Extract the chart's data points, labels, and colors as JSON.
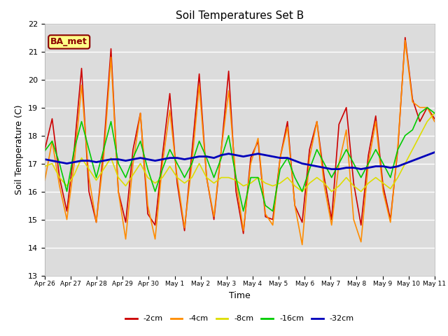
{
  "title": "Soil Temperatures Set B",
  "xlabel": "Time",
  "ylabel": "Soil Temperature (C)",
  "ylim": [
    13.0,
    22.0
  ],
  "yticks": [
    13.0,
    14.0,
    15.0,
    16.0,
    17.0,
    18.0,
    19.0,
    20.0,
    21.0,
    22.0
  ],
  "x_labels": [
    "Apr 26",
    "Apr 27",
    "Apr 28",
    "Apr 29",
    "Apr 30",
    "May 1",
    "May 2",
    "May 3",
    "May 4",
    "May 5",
    "May 6",
    "May 7",
    "May 8",
    "May 9",
    "May 10",
    "May 11"
  ],
  "annotation": "BA_met",
  "series_order": [
    "-2cm",
    "-4cm",
    "-8cm",
    "-16cm",
    "-32cm"
  ],
  "series": {
    "-2cm": {
      "color": "#CC0000",
      "linewidth": 1.2,
      "values": [
        17.5,
        18.6,
        16.5,
        15.3,
        17.5,
        20.4,
        16.0,
        14.9,
        17.5,
        21.1,
        16.0,
        14.9,
        17.5,
        18.8,
        15.2,
        14.8,
        17.3,
        19.5,
        16.3,
        14.6,
        17.4,
        20.2,
        16.5,
        15.0,
        17.5,
        20.3,
        16.0,
        14.5,
        17.2,
        17.8,
        15.1,
        15.0,
        17.2,
        18.5,
        15.5,
        14.9,
        17.5,
        18.5,
        16.5,
        15.0,
        18.4,
        19.0,
        16.3,
        14.8,
        17.3,
        18.7,
        16.2,
        15.0,
        17.5,
        21.5,
        19.3,
        18.5,
        19.0,
        18.6
      ]
    },
    "-4cm": {
      "color": "#FF8C00",
      "linewidth": 1.2,
      "values": [
        16.4,
        17.8,
        16.2,
        15.0,
        17.0,
        19.8,
        16.5,
        14.9,
        17.2,
        20.8,
        16.0,
        14.3,
        17.0,
        18.8,
        15.5,
        14.3,
        17.0,
        18.9,
        16.5,
        14.7,
        17.0,
        19.8,
        16.5,
        15.1,
        17.5,
        19.6,
        16.4,
        14.6,
        17.0,
        17.9,
        15.2,
        14.8,
        17.2,
        18.3,
        15.5,
        14.1,
        17.2,
        18.5,
        16.2,
        14.8,
        17.0,
        18.2,
        15.0,
        14.2,
        17.0,
        18.5,
        16.0,
        14.9,
        17.6,
        21.4,
        19.2,
        19.0,
        19.0,
        18.5
      ]
    },
    "-8cm": {
      "color": "#DDDD00",
      "linewidth": 1.2,
      "values": [
        16.9,
        17.0,
        16.5,
        16.2,
        16.6,
        17.2,
        16.8,
        16.4,
        16.8,
        17.2,
        16.5,
        16.2,
        16.6,
        17.0,
        16.5,
        16.3,
        16.5,
        16.9,
        16.5,
        16.3,
        16.5,
        17.0,
        16.5,
        16.3,
        16.5,
        16.5,
        16.4,
        16.2,
        16.3,
        16.5,
        16.3,
        16.2,
        16.3,
        16.5,
        16.2,
        16.0,
        16.3,
        16.5,
        16.3,
        16.0,
        16.2,
        16.5,
        16.2,
        16.0,
        16.3,
        16.5,
        16.3,
        16.1,
        16.5,
        17.0,
        17.5,
        18.0,
        18.5,
        18.8
      ]
    },
    "-16cm": {
      "color": "#00CC00",
      "linewidth": 1.2,
      "values": [
        17.45,
        17.8,
        17.0,
        16.0,
        17.5,
        18.5,
        17.5,
        16.5,
        17.5,
        18.5,
        17.0,
        16.5,
        17.2,
        17.8,
        16.8,
        16.0,
        16.8,
        17.5,
        17.0,
        16.5,
        17.0,
        17.8,
        17.2,
        16.5,
        17.2,
        18.0,
        16.5,
        15.3,
        16.5,
        16.5,
        15.5,
        15.3,
        16.8,
        17.2,
        16.5,
        16.0,
        16.8,
        17.5,
        17.0,
        16.5,
        17.0,
        17.5,
        17.0,
        16.5,
        17.0,
        17.5,
        17.0,
        16.5,
        17.5,
        18.0,
        18.2,
        18.8,
        19.0,
        18.8
      ]
    },
    "-32cm": {
      "color": "#0000BB",
      "linewidth": 2.0,
      "values": [
        17.15,
        17.1,
        17.05,
        17.0,
        17.05,
        17.1,
        17.1,
        17.05,
        17.1,
        17.15,
        17.15,
        17.1,
        17.15,
        17.2,
        17.15,
        17.1,
        17.15,
        17.2,
        17.2,
        17.15,
        17.2,
        17.25,
        17.25,
        17.2,
        17.3,
        17.35,
        17.3,
        17.25,
        17.3,
        17.35,
        17.3,
        17.25,
        17.2,
        17.2,
        17.1,
        17.0,
        16.95,
        16.9,
        16.85,
        16.8,
        16.8,
        16.85,
        16.85,
        16.8,
        16.85,
        16.9,
        16.9,
        16.85,
        16.9,
        17.0,
        17.1,
        17.2,
        17.3,
        17.4
      ]
    }
  },
  "background_color": "#DCDCDC",
  "legend_entries": [
    "-2cm",
    "-4cm",
    "-8cm",
    "-16cm",
    "-32cm"
  ],
  "legend_colors": [
    "#CC0000",
    "#FF8C00",
    "#DDDD00",
    "#00CC00",
    "#0000BB"
  ]
}
